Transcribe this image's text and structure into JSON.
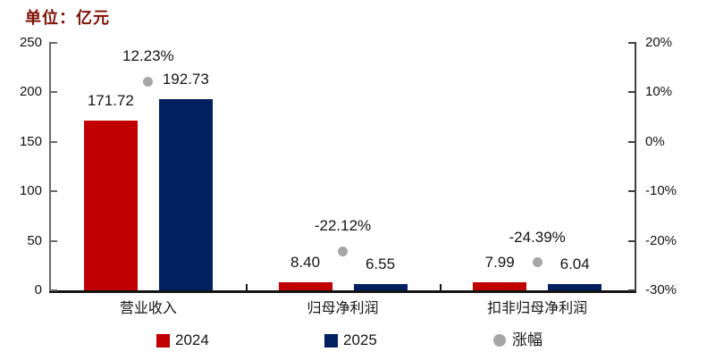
{
  "title": "单位：亿元",
  "colors": {
    "title_text": "#7E1108",
    "bar_2024": "#C00000",
    "bar_2025": "#002060",
    "growth_dot": "#A6A6A6",
    "axis_side": "#6A6A6A",
    "axis_right": "#404040",
    "axis_bottom": "#141414",
    "text": "#141414"
  },
  "chart_data": {
    "type": "bar",
    "title": "单位：亿元",
    "categories": [
      "营业收入",
      "归母净利润",
      "扣非归母净利润"
    ],
    "series": [
      {
        "name": "2024",
        "values": [
          171.72,
          8.4,
          7.99
        ],
        "color": "#C00000"
      },
      {
        "name": "2025",
        "values": [
          192.73,
          6.55,
          6.04
        ],
        "color": "#002060"
      }
    ],
    "value_labels": [
      [
        "171.72",
        "192.73"
      ],
      [
        "8.40",
        "6.55"
      ],
      [
        "7.99",
        "6.04"
      ]
    ],
    "growth_series": {
      "name": "涨幅",
      "values_pct": [
        12.23,
        -22.12,
        -24.39
      ],
      "labels": [
        "12.23%",
        "-22.12%",
        "-24.39%"
      ],
      "color": "#A6A6A6"
    },
    "left_axis": {
      "min": 0,
      "max": 250,
      "ticks": [
        250,
        200,
        150,
        100,
        50,
        0
      ]
    },
    "right_axis": {
      "min": -30,
      "max": 20,
      "ticks": [
        "20%",
        "10%",
        "0%",
        "-10%",
        "-20%",
        "-30%"
      ]
    },
    "grid": "off",
    "legend_position": "bottom",
    "legend": [
      {
        "label": "2024",
        "marker": "square",
        "color": "#C00000"
      },
      {
        "label": "2025",
        "marker": "square",
        "color": "#002060"
      },
      {
        "label": "涨幅",
        "marker": "circle",
        "color": "#A6A6A6"
      }
    ]
  }
}
